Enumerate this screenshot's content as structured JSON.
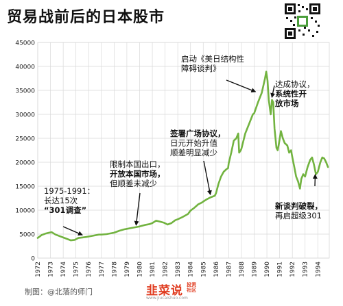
{
  "header": {
    "title": "贸易战前后的日本股市"
  },
  "footer": {
    "credit": "制图：@北落的师门",
    "brand_main": "韭菜说",
    "brand_sub1": "投资",
    "brand_sub2": "社区",
    "brand_url": "www.jiucaishuo.com"
  },
  "colors": {
    "line": "#72b340",
    "grid": "#d8d8d8",
    "text": "#222222",
    "brand": "#e03a1e"
  },
  "icons": {
    "qr": "qr-code-icon"
  },
  "chart_data": {
    "type": "line",
    "title": "贸易战前后的日本股市",
    "xlabel": "",
    "ylabel": "",
    "xlim": [
      1972,
      1994.9
    ],
    "ylim": [
      0,
      45000
    ],
    "grid": true,
    "x_ticks": [
      1972,
      1973,
      1974,
      1975,
      1976,
      1977,
      1978,
      1979,
      1980,
      1981,
      1982,
      1983,
      1984,
      1985,
      1986,
      1987,
      1988,
      1989,
      1990,
      1991,
      1992,
      1993,
      1994
    ],
    "y_ticks": [
      0,
      5000,
      10000,
      15000,
      20000,
      25000,
      30000,
      35000,
      40000,
      45000
    ],
    "series": [
      {
        "values": [
          [
            1972.0,
            4200
          ],
          [
            1972.3,
            4800
          ],
          [
            1972.6,
            5100
          ],
          [
            1972.9,
            5300
          ],
          [
            1973.1,
            5400
          ],
          [
            1973.4,
            4900
          ],
          [
            1973.7,
            4600
          ],
          [
            1974.0,
            4300
          ],
          [
            1974.3,
            4000
          ],
          [
            1974.6,
            3700
          ],
          [
            1974.9,
            3800
          ],
          [
            1975.2,
            4200
          ],
          [
            1975.5,
            4300
          ],
          [
            1975.8,
            4400
          ],
          [
            1976.0,
            4500
          ],
          [
            1976.4,
            4700
          ],
          [
            1976.8,
            4900
          ],
          [
            1977.0,
            4900
          ],
          [
            1977.4,
            5000
          ],
          [
            1977.8,
            5200
          ],
          [
            1978.0,
            5300
          ],
          [
            1978.4,
            5700
          ],
          [
            1978.8,
            6000
          ],
          [
            1979.0,
            6100
          ],
          [
            1979.4,
            6300
          ],
          [
            1979.8,
            6500
          ],
          [
            1980.0,
            6600
          ],
          [
            1980.4,
            6900
          ],
          [
            1980.8,
            7100
          ],
          [
            1981.0,
            7300
          ],
          [
            1981.3,
            7800
          ],
          [
            1981.6,
            7600
          ],
          [
            1981.9,
            7400
          ],
          [
            1982.2,
            7000
          ],
          [
            1982.5,
            7300
          ],
          [
            1982.8,
            7900
          ],
          [
            1983.0,
            8100
          ],
          [
            1983.4,
            8600
          ],
          [
            1983.8,
            9200
          ],
          [
            1984.0,
            9900
          ],
          [
            1984.3,
            10500
          ],
          [
            1984.6,
            11200
          ],
          [
            1984.9,
            11600
          ],
          [
            1985.0,
            11800
          ],
          [
            1985.3,
            12300
          ],
          [
            1985.6,
            12700
          ],
          [
            1985.9,
            13000
          ],
          [
            1986.0,
            13500
          ],
          [
            1986.2,
            15500
          ],
          [
            1986.4,
            17000
          ],
          [
            1986.6,
            18000
          ],
          [
            1986.8,
            18500
          ],
          [
            1986.95,
            18800
          ],
          [
            1987.0,
            19800
          ],
          [
            1987.2,
            22000
          ],
          [
            1987.4,
            24500
          ],
          [
            1987.6,
            25000
          ],
          [
            1987.75,
            26000
          ],
          [
            1987.82,
            22000
          ],
          [
            1987.95,
            22500
          ],
          [
            1988.0,
            22800
          ],
          [
            1988.3,
            26000
          ],
          [
            1988.6,
            28000
          ],
          [
            1988.9,
            30000
          ],
          [
            1989.0,
            30200
          ],
          [
            1989.3,
            32500
          ],
          [
            1989.6,
            34500
          ],
          [
            1989.85,
            37500
          ],
          [
            1989.95,
            38900
          ],
          [
            1990.05,
            37000
          ],
          [
            1990.15,
            33000
          ],
          [
            1990.3,
            30000
          ],
          [
            1990.4,
            33000
          ],
          [
            1990.5,
            32500
          ],
          [
            1990.6,
            27000
          ],
          [
            1990.75,
            23000
          ],
          [
            1990.85,
            22500
          ],
          [
            1990.95,
            24000
          ],
          [
            1991.1,
            26500
          ],
          [
            1991.25,
            25000
          ],
          [
            1991.4,
            24000
          ],
          [
            1991.6,
            23500
          ],
          [
            1991.75,
            22000
          ],
          [
            1991.9,
            22500
          ],
          [
            1992.0,
            21000
          ],
          [
            1992.15,
            19000
          ],
          [
            1992.3,
            17000
          ],
          [
            1992.45,
            16000
          ],
          [
            1992.6,
            14500
          ],
          [
            1992.7,
            16500
          ],
          [
            1992.85,
            17500
          ],
          [
            1993.0,
            17000
          ],
          [
            1993.2,
            19000
          ],
          [
            1993.4,
            20500
          ],
          [
            1993.55,
            21000
          ],
          [
            1993.7,
            19500
          ],
          [
            1993.85,
            17500
          ],
          [
            1994.0,
            18000
          ],
          [
            1994.2,
            20000
          ],
          [
            1994.35,
            21000
          ],
          [
            1994.5,
            20800
          ],
          [
            1994.65,
            20000
          ],
          [
            1994.8,
            19000
          ]
        ]
      }
    ],
    "annotations": [
      {
        "lines": [
          "1975-1991：",
          "长达15次",
          "“301调查”"
        ],
        "bold": [
          false,
          false,
          true
        ],
        "target": [
          1975.7,
          4600
        ]
      },
      {
        "lines": [
          "限制本国出口，",
          "开放本国市场，",
          "但顺差未减少"
        ],
        "bold": [
          false,
          true,
          false
        ],
        "target": [
          1979.7,
          6300
        ]
      },
      {
        "lines": [
          "签署广场协议，",
          "日元开始升值",
          "顺差明显减少"
        ],
        "bold": [
          true,
          false,
          false
        ],
        "target": [
          1985.6,
          12700
        ]
      },
      {
        "lines": [
          "启动《美日结构性",
          "障碍谈判》"
        ],
        "bold": [
          false,
          false
        ],
        "target": [
          1989.3,
          34500
        ]
      },
      {
        "lines": [
          "达成协议，",
          "系统性开",
          "放市场"
        ],
        "bold": [
          false,
          true,
          true
        ],
        "target": [
          1990.35,
          33000
        ]
      },
      {
        "lines": [
          "新谈判破裂，",
          "再启超级301"
        ],
        "bold": [
          true,
          false
        ],
        "target": [
          1993.8,
          18000
        ]
      }
    ]
  }
}
